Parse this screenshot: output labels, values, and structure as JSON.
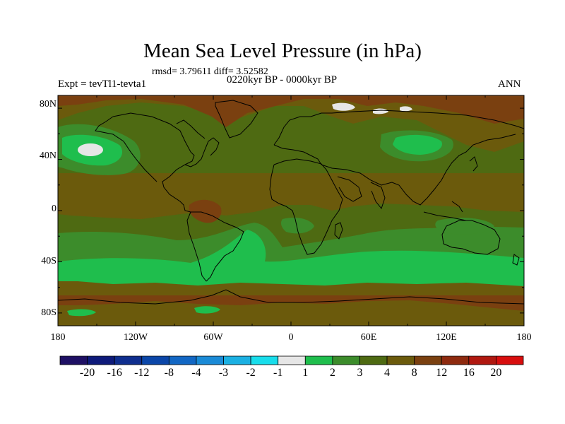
{
  "title": "Mean Sea Level Pressure (in hPa)",
  "stats": "rmsd= 3.79611 diff= 3.52582",
  "subtitle": "0220kyr BP - 0000kyr BP",
  "left_label": "Expt = tevTl1-tevta1",
  "right_label": "ANN",
  "map": {
    "projection": "cylindrical-equidistant",
    "lon_range": [
      -180,
      180
    ],
    "lat_range": [
      -90,
      90
    ],
    "background_color": "#4E6A12",
    "y_tick_labels": [
      "80N",
      "40N",
      "0",
      "40S",
      "80S"
    ],
    "x_tick_labels": [
      "180",
      "120W",
      "60W",
      "0",
      "60E",
      "120E",
      "180"
    ]
  },
  "colorbar": {
    "levels": [
      "-20",
      "-16",
      "-12",
      "-8",
      "-4",
      "-3",
      "-2",
      "-1",
      "1",
      "2",
      "3",
      "4",
      "8",
      "12",
      "16",
      "20"
    ],
    "colors": [
      "#1E1064",
      "#0E1A7A",
      "#0F2E8E",
      "#0B46A8",
      "#1267C4",
      "#1A8AD6",
      "#1BB0E2",
      "#18DDEB",
      "#E6E6E6",
      "#1FBE4D",
      "#3C8C2B",
      "#4E6A12",
      "#6B5A0C",
      "#7A4010",
      "#8E2A0F",
      "#B01810",
      "#D80E0E"
    ]
  },
  "legend_colors": {
    "green_light": "#1FBE4D",
    "green_mid": "#3C8C2B",
    "olive": "#4E6A12",
    "brown": "#6B5A0C",
    "rust": "#7A4010",
    "white": "#E6E6E6"
  }
}
